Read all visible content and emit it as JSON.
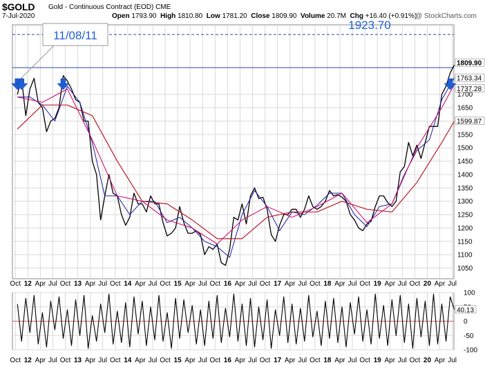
{
  "header": {
    "symbol": "$GOLD",
    "description": "Gold - Continuous Contract (EOD)",
    "exchange": "CME",
    "date": "7-Jul-2020",
    "quote": {
      "open_label": "Open",
      "open": "1793.90",
      "high_label": "High",
      "high": "1810.80",
      "low_label": "Low",
      "low": "1781.20",
      "close_label": "Close",
      "close": "1809.90",
      "volume_label": "Volume",
      "volume": "20.7M",
      "chg_label": "Chg",
      "chg": "+16.40 (+0.91%)"
    },
    "watermark": "@ StockCharts.com"
  },
  "annotations": {
    "callout": "11/08/11",
    "level": "1923.70"
  },
  "colors": {
    "price": "#000000",
    "price_highlight": "#cc0066",
    "ma_short": "#1a1aa0",
    "ma_long": "#b81b2a",
    "resistance": "#2a4a9a",
    "arrows": "#1f5fd6",
    "grid": "#d9d9d9",
    "oscillator": "#000000",
    "oscillator_fill": "#d0363a"
  },
  "chart_data": [
    {
      "type": "line",
      "title": "",
      "ylim": [
        1010,
        1960
      ],
      "yticks": [
        1050,
        1100,
        1150,
        1200,
        1250,
        1300,
        1350,
        1400,
        1450,
        1500,
        1550,
        1600,
        1650,
        1700
      ],
      "x_ticks": [
        "Oct",
        "12",
        "Apr",
        "Jul",
        "Oct",
        "13",
        "Apr",
        "Jul",
        "Oct",
        "14",
        "Apr",
        "Jul",
        "Oct",
        "15",
        "Apr",
        "Jul",
        "Oct",
        "16",
        "Apr",
        "Jul",
        "Oct",
        "17",
        "Apr",
        "Jul",
        "Oct",
        "18",
        "Apr",
        "Jul",
        "Oct",
        "19",
        "Apr",
        "Jul",
        "Oct",
        "20",
        "Apr",
        "Jul"
      ],
      "x_bold": [
        "12",
        "13",
        "14",
        "15",
        "16",
        "17",
        "18",
        "19",
        "20"
      ],
      "grid": true,
      "series": [
        {
          "role": "price",
          "x": [
            "2011-10",
            "2011-11",
            "2011-12",
            "2012-01",
            "2012-02",
            "2012-03",
            "2012-04",
            "2012-05",
            "2012-06",
            "2012-07",
            "2012-08",
            "2012-09",
            "2012-10",
            "2012-11",
            "2012-12",
            "2013-01",
            "2013-02",
            "2013-03",
            "2013-04",
            "2013-05",
            "2013-06",
            "2013-07",
            "2013-08",
            "2013-09",
            "2013-10",
            "2013-11",
            "2013-12",
            "2014-01",
            "2014-02",
            "2014-03",
            "2014-04",
            "2014-05",
            "2014-06",
            "2014-07",
            "2014-08",
            "2014-09",
            "2014-10",
            "2014-11",
            "2014-12",
            "2015-01",
            "2015-02",
            "2015-03",
            "2015-04",
            "2015-05",
            "2015-06",
            "2015-07",
            "2015-08",
            "2015-09",
            "2015-10",
            "2015-11",
            "2015-12",
            "2016-01",
            "2016-02",
            "2016-03",
            "2016-04",
            "2016-05",
            "2016-06",
            "2016-07",
            "2016-08",
            "2016-09",
            "2016-10",
            "2016-11",
            "2016-12",
            "2017-01",
            "2017-02",
            "2017-03",
            "2017-04",
            "2017-05",
            "2017-06",
            "2017-07",
            "2017-08",
            "2017-09",
            "2017-10",
            "2017-11",
            "2017-12",
            "2018-01",
            "2018-02",
            "2018-03",
            "2018-04",
            "2018-05",
            "2018-06",
            "2018-07",
            "2018-08",
            "2018-09",
            "2018-10",
            "2018-11",
            "2018-12",
            "2019-01",
            "2019-02",
            "2019-03",
            "2019-04",
            "2019-05",
            "2019-06",
            "2019-07",
            "2019-08",
            "2019-09",
            "2019-10",
            "2019-11",
            "2019-12",
            "2020-01",
            "2020-02",
            "2020-03",
            "2020-04",
            "2020-05",
            "2020-06",
            "2020-07"
          ],
          "values": [
            1700,
            1760,
            1620,
            1720,
            1760,
            1670,
            1650,
            1560,
            1600,
            1610,
            1650,
            1770,
            1750,
            1720,
            1680,
            1670,
            1600,
            1600,
            1450,
            1400,
            1230,
            1320,
            1400,
            1330,
            1320,
            1250,
            1210,
            1240,
            1330,
            1290,
            1290,
            1260,
            1320,
            1290,
            1290,
            1220,
            1170,
            1180,
            1200,
            1280,
            1220,
            1180,
            1180,
            1190,
            1175,
            1100,
            1130,
            1120,
            1140,
            1070,
            1060,
            1120,
            1240,
            1230,
            1290,
            1215,
            1320,
            1350,
            1310,
            1315,
            1270,
            1175,
            1150,
            1210,
            1250,
            1250,
            1270,
            1270,
            1240,
            1270,
            1320,
            1280,
            1270,
            1280,
            1300,
            1340,
            1320,
            1325,
            1315,
            1300,
            1250,
            1230,
            1200,
            1190,
            1215,
            1225,
            1280,
            1320,
            1320,
            1295,
            1280,
            1300,
            1410,
            1430,
            1520,
            1470,
            1510,
            1460,
            1520,
            1580,
            1580,
            1580,
            1700,
            1730,
            1780,
            1810
          ]
        },
        {
          "role": "ma_short",
          "x": [
            "2011-10",
            "2012-01",
            "2012-04",
            "2012-07",
            "2012-10",
            "2013-01",
            "2013-04",
            "2013-07",
            "2013-10",
            "2014-01",
            "2014-04",
            "2014-07",
            "2014-10",
            "2015-01",
            "2015-04",
            "2015-07",
            "2015-10",
            "2016-01",
            "2016-04",
            "2016-07",
            "2016-10",
            "2017-01",
            "2017-04",
            "2017-07",
            "2017-10",
            "2018-01",
            "2018-04",
            "2018-07",
            "2018-10",
            "2019-01",
            "2019-04",
            "2019-07",
            "2019-10",
            "2020-01",
            "2020-04",
            "2020-07"
          ],
          "values": [
            1690,
            1690,
            1660,
            1600,
            1730,
            1670,
            1520,
            1320,
            1320,
            1250,
            1300,
            1300,
            1220,
            1240,
            1200,
            1150,
            1130,
            1090,
            1250,
            1340,
            1280,
            1190,
            1260,
            1250,
            1285,
            1330,
            1330,
            1250,
            1205,
            1280,
            1290,
            1400,
            1490,
            1530,
            1680,
            1763.34
          ]
        },
        {
          "role": "ma_mid",
          "x": [
            "2011-10",
            "2012-04",
            "2012-10",
            "2013-04",
            "2013-10",
            "2014-04",
            "2014-10",
            "2015-04",
            "2015-10",
            "2016-04",
            "2016-10",
            "2017-04",
            "2017-10",
            "2018-04",
            "2018-10",
            "2019-04",
            "2019-10",
            "2020-04",
            "2020-07"
          ],
          "values": [
            1690,
            1670,
            1720,
            1530,
            1320,
            1300,
            1230,
            1200,
            1140,
            1230,
            1280,
            1240,
            1280,
            1330,
            1220,
            1290,
            1500,
            1650,
            1737.28
          ]
        },
        {
          "role": "ma_long",
          "x": [
            "2011-10",
            "2012-04",
            "2012-10",
            "2013-04",
            "2013-10",
            "2014-04",
            "2014-10",
            "2015-04",
            "2015-10",
            "2016-04",
            "2016-10",
            "2017-04",
            "2017-10",
            "2018-04",
            "2018-10",
            "2019-04",
            "2019-10",
            "2020-04",
            "2020-07"
          ],
          "values": [
            1570,
            1660,
            1660,
            1620,
            1450,
            1300,
            1290,
            1230,
            1160,
            1160,
            1240,
            1260,
            1260,
            1300,
            1270,
            1260,
            1370,
            1520,
            1599.87
          ]
        }
      ],
      "reference_lines": [
        {
          "label": "1923.70",
          "value": 1923.7,
          "style": "dashed"
        },
        {
          "value": 1800,
          "style": "solid"
        }
      ],
      "last_value_labels": [
        "1809.90",
        "1763.34",
        "1737.28",
        "1599.87"
      ],
      "arrows_at": [
        "2011-10",
        "2011-11",
        "2012-09",
        "2020-06"
      ]
    },
    {
      "type": "line",
      "title": "",
      "ylim": [
        -100,
        100
      ],
      "yticks": [
        100,
        50,
        0,
        -50,
        -100
      ],
      "last_value": "40.13",
      "series": [
        {
          "role": "oscillator",
          "x": [
            "2011-10",
            "2011-11",
            "2011-12",
            "2012-01",
            "2012-02",
            "2012-03",
            "2012-04",
            "2012-05",
            "2012-06",
            "2012-07",
            "2012-08",
            "2012-09",
            "2012-10",
            "2012-11",
            "2012-12",
            "2013-01",
            "2013-02",
            "2013-03",
            "2013-04",
            "2013-05",
            "2013-06",
            "2013-07",
            "2013-08",
            "2013-09",
            "2013-10",
            "2013-11",
            "2013-12",
            "2014-01",
            "2014-02",
            "2014-03",
            "2014-04",
            "2014-05",
            "2014-06",
            "2014-07",
            "2014-08",
            "2014-09",
            "2014-10",
            "2014-11",
            "2014-12",
            "2015-01",
            "2015-02",
            "2015-03",
            "2015-04",
            "2015-05",
            "2015-06",
            "2015-07",
            "2015-08",
            "2015-09",
            "2015-10",
            "2015-11",
            "2015-12",
            "2016-01",
            "2016-02",
            "2016-03",
            "2016-04",
            "2016-05",
            "2016-06",
            "2016-07",
            "2016-08",
            "2016-09",
            "2016-10",
            "2016-11",
            "2016-12",
            "2017-01",
            "2017-02",
            "2017-03",
            "2017-04",
            "2017-05",
            "2017-06",
            "2017-07",
            "2017-08",
            "2017-09",
            "2017-10",
            "2017-11",
            "2017-12",
            "2018-01",
            "2018-02",
            "2018-03",
            "2018-04",
            "2018-05",
            "2018-06",
            "2018-07",
            "2018-08",
            "2018-09",
            "2018-10",
            "2018-11",
            "2018-12",
            "2019-01",
            "2019-02",
            "2019-03",
            "2019-04",
            "2019-05",
            "2019-06",
            "2019-07",
            "2019-08",
            "2019-09",
            "2019-10",
            "2019-11",
            "2019-12",
            "2020-01",
            "2020-02",
            "2020-03",
            "2020-04",
            "2020-05",
            "2020-06",
            "2020-07"
          ],
          "values": [
            60,
            -70,
            80,
            -40,
            90,
            -80,
            30,
            -90,
            70,
            -30,
            85,
            -60,
            40,
            -85,
            75,
            -50,
            90,
            -95,
            20,
            -70,
            60,
            -40,
            95,
            -80,
            35,
            -75,
            65,
            -90,
            85,
            -45,
            70,
            -85,
            50,
            -65,
            90,
            -70,
            30,
            -95,
            80,
            -60,
            75,
            -40,
            55,
            -80,
            40,
            -85,
            70,
            -60,
            90,
            -75,
            45,
            -55,
            95,
            -70,
            60,
            -85,
            80,
            -90,
            50,
            -65,
            75,
            -95,
            40,
            -50,
            85,
            -75,
            60,
            -80,
            45,
            -70,
            90,
            -55,
            35,
            -85,
            70,
            -60,
            80,
            -75,
            50,
            -90,
            65,
            -45,
            85,
            -70,
            40,
            -80,
            95,
            -60,
            55,
            -85,
            75,
            -50,
            90,
            -75,
            60,
            -95,
            80,
            -55,
            70,
            -85,
            95,
            -80,
            60,
            -70,
            85,
            40.13
          ]
        }
      ]
    }
  ]
}
